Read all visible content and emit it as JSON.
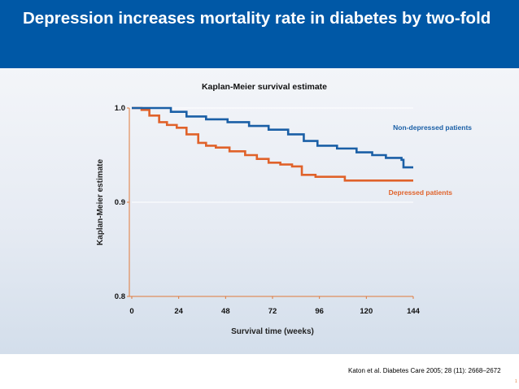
{
  "slide": {
    "title": "Depression increases mortality rate in diabetes by two-fold",
    "citation": "Katon et al. Diabetes Care 2005; 28 (11): 2668–2672",
    "page_number": "1"
  },
  "colors": {
    "header": "#0058a6",
    "non_depressed": "#1a5fa6",
    "depressed": "#e0622a",
    "axis": "#e0793a"
  },
  "chart_data": {
    "type": "line",
    "title": "Kaplan-Meier survival estimate",
    "xlabel": "Survival time (weeks)",
    "ylabel": "Kaplan-Meier estimate",
    "xlim": [
      0,
      144
    ],
    "ylim": [
      0.8,
      1.0
    ],
    "xticks": [
      0,
      24,
      48,
      72,
      96,
      120,
      144
    ],
    "yticks": [
      "0.8",
      "0.9",
      "1.0"
    ],
    "grid": "horizontal at 0.9 and 1.0",
    "step": true,
    "series": [
      {
        "name": "Non-depressed patients",
        "x": [
          0,
          10,
          20,
          28,
          38,
          49,
          60,
          70,
          80,
          88,
          95,
          105,
          115,
          123,
          130,
          138,
          139,
          144
        ],
        "y": [
          1.0,
          1.0,
          0.996,
          0.991,
          0.988,
          0.985,
          0.981,
          0.977,
          0.972,
          0.965,
          0.96,
          0.957,
          0.953,
          0.95,
          0.947,
          0.945,
          0.937,
          0.937
        ]
      },
      {
        "name": "Depressed patients",
        "x": [
          0,
          5,
          9,
          14,
          18,
          23,
          28,
          34,
          38,
          43,
          50,
          58,
          64,
          70,
          76,
          82,
          87,
          94,
          109,
          144
        ],
        "y": [
          1.0,
          0.998,
          0.992,
          0.985,
          0.982,
          0.979,
          0.972,
          0.963,
          0.96,
          0.958,
          0.954,
          0.95,
          0.946,
          0.942,
          0.94,
          0.938,
          0.929,
          0.927,
          0.923,
          0.923
        ]
      }
    ]
  }
}
